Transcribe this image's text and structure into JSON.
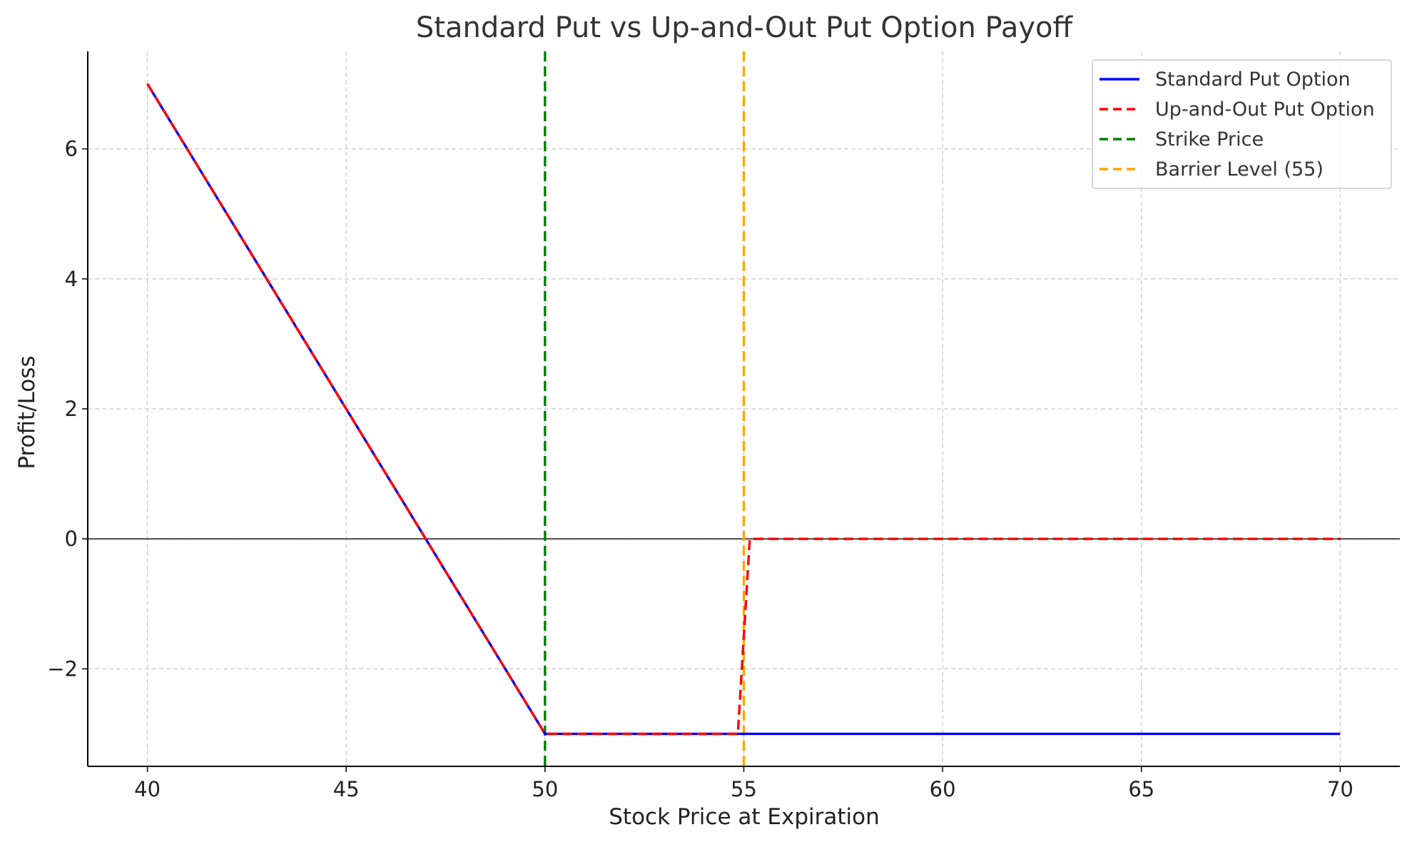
{
  "chart_data": {
    "type": "line",
    "title": "Standard Put vs Up-and-Out Put Option Payoff",
    "xlabel": "Stock Price at Expiration",
    "ylabel": "Profit/Loss",
    "xlim": [
      38.5,
      71.5
    ],
    "ylim": [
      -3.5,
      7.5
    ],
    "xticks": [
      40,
      45,
      50,
      55,
      60,
      65,
      70
    ],
    "yticks": [
      -2,
      0,
      2,
      4,
      6
    ],
    "ytick_labels": [
      "−2",
      "0",
      "2",
      "4",
      "6"
    ],
    "grid": true,
    "zero_line": true,
    "legend_position": "top-right",
    "series": [
      {
        "name": "Standard Put Option",
        "color": "#0000ff",
        "style": "solid",
        "x": [
          40,
          50,
          70
        ],
        "y": [
          7,
          -3,
          -3
        ]
      },
      {
        "name": "Up-and-Out Put Option",
        "color": "#ff0000",
        "style": "dashed",
        "x": [
          40,
          50,
          54.85,
          55.15,
          70
        ],
        "y": [
          7,
          -3,
          -3,
          0,
          0
        ]
      },
      {
        "name": "Strike Price",
        "color": "#008000",
        "style": "dashed",
        "vline": 50
      },
      {
        "name": "Barrier Level (55)",
        "color": "#ffa500",
        "style": "dashed",
        "vline": 55
      }
    ]
  }
}
